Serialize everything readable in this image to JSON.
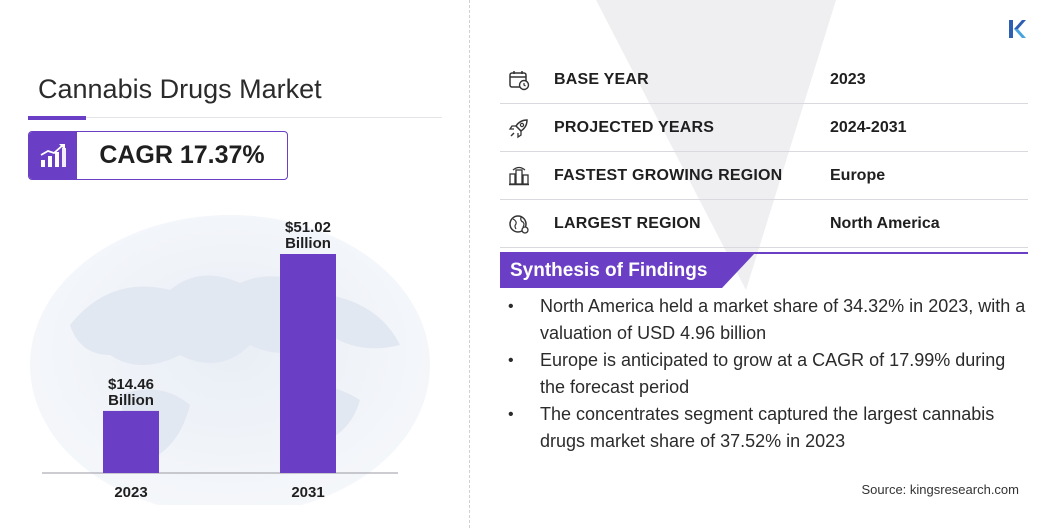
{
  "title": "Cannabis Drugs Market",
  "cagr": "CAGR 17.37%",
  "info_rows": [
    {
      "icon": "calendar-icon",
      "label": "BASE YEAR",
      "value": "2023"
    },
    {
      "icon": "rocket-icon",
      "label": "PROJECTED YEARS",
      "value": "2024-2031"
    },
    {
      "icon": "city-region-icon",
      "label": "FASTEST GROWING REGION",
      "value": "Europe"
    },
    {
      "icon": "globe-icon",
      "label": "LARGEST REGION",
      "value": "North America"
    }
  ],
  "synthesis_title": "Synthesis  of Findings",
  "findings": [
    "North America held a market share of 34.32% in 2023, with a valuation of USD 4.96 billion",
    "Europe is anticipated to grow at a CAGR of 17.99% during the forecast period",
    "The concentrates segment captured the largest cannabis drugs market share of 37.52% in 2023"
  ],
  "source": "Source: kingsresearch.com",
  "colors": {
    "accent": "#6a3fc5",
    "bar": "#6a3fc5",
    "text": "#1f1f1f"
  },
  "chart_data": {
    "type": "bar",
    "categories": [
      "2023",
      "2031"
    ],
    "values": [
      14.46,
      51.02
    ],
    "data_labels": [
      [
        "$14.46",
        "Billion"
      ],
      [
        "$51.02",
        "Billion"
      ]
    ],
    "title": "",
    "xlabel": "",
    "ylabel": "",
    "ylim": [
      0,
      51.02
    ],
    "grid": false,
    "legend": "none"
  }
}
